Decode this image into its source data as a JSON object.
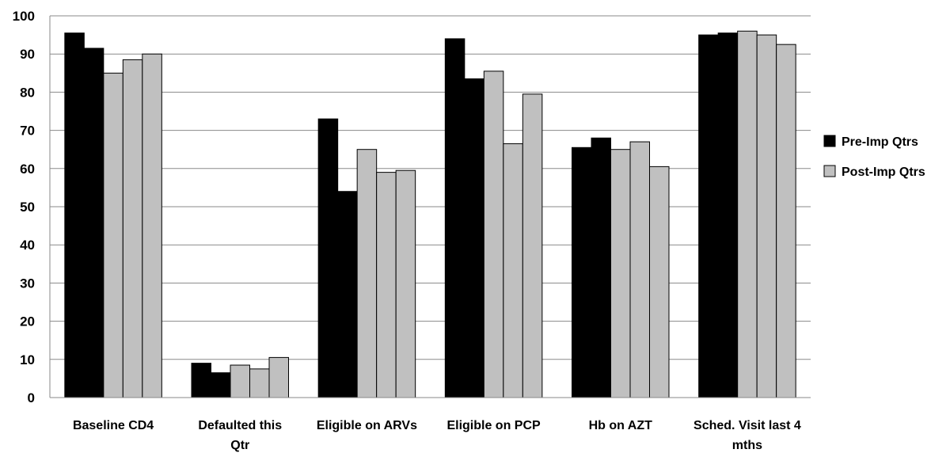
{
  "chart_data": {
    "type": "bar",
    "categories": [
      [
        "Baseline CD4"
      ],
      [
        "Defaulted this",
        "Qtr"
      ],
      [
        "Eligible on ARVs"
      ],
      [
        "Eligible on PCP"
      ],
      [
        "Hb on AZT"
      ],
      [
        "Sched. Visit last 4",
        "mths"
      ]
    ],
    "groups": [
      {
        "values": [
          95.5,
          91.5
        ],
        "series": "Pre-Imp Qtrs"
      },
      {
        "values": [
          85.0,
          88.5,
          90.0
        ],
        "series": "Post-Imp Qtrs"
      },
      {
        "values": [
          9.0,
          6.5
        ],
        "series": "Pre-Imp Qtrs"
      },
      {
        "values": [
          8.5,
          7.5,
          10.5
        ],
        "series": "Post-Imp Qtrs"
      },
      {
        "values": [
          73.0,
          54.0
        ],
        "series": "Pre-Imp Qtrs"
      },
      {
        "values": [
          65.0,
          59.0,
          59.5
        ],
        "series": "Post-Imp Qtrs"
      },
      {
        "values": [
          94.0,
          83.5
        ],
        "series": "Pre-Imp Qtrs"
      },
      {
        "values": [
          85.5,
          66.5,
          79.5
        ],
        "series": "Post-Imp Qtrs"
      },
      {
        "values": [
          65.5,
          68.0
        ],
        "series": "Pre-Imp Qtrs"
      },
      {
        "values": [
          65.0,
          67.0,
          60.5
        ],
        "series": "Post-Imp Qtrs"
      },
      {
        "values": [
          95.0,
          95.5
        ],
        "series": "Pre-Imp Qtrs"
      },
      {
        "values": [
          96.0,
          95.0,
          92.5
        ],
        "series": "Post-Imp Qtrs"
      }
    ],
    "series": [
      {
        "name": "Pre-Imp Qtrs",
        "color": "#000000"
      },
      {
        "name": "Post-Imp Qtrs",
        "color": "#c0c0c0"
      }
    ],
    "ylim": [
      0,
      100
    ],
    "yticks": [
      0,
      10,
      20,
      30,
      40,
      50,
      60,
      70,
      80,
      90,
      100
    ],
    "grid": true,
    "legend_position": "right",
    "title": "",
    "xlabel": "",
    "ylabel": ""
  }
}
